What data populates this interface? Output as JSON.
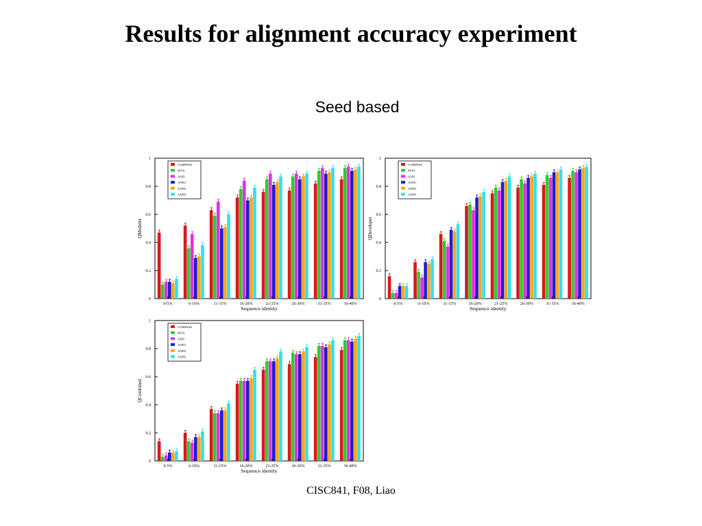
{
  "slide": {
    "title": "Results for alignment accuracy experiment",
    "subtitle": "Seed based",
    "footer": "CISC841, F08, Liao"
  },
  "colors": {
    "COMPASS": "#d7191c",
    "MAX": "#2ecc2e",
    "AND": "#e52ee5",
    "AND1": "#1f1fc8",
    "AND2": "#ffa51f",
    "AND3": "#33e0ee"
  },
  "chart_data": [
    {
      "type": "bar",
      "ylabel": "QModeler",
      "xlabel": "Sequence identity",
      "ylim": [
        0,
        1
      ],
      "yticks": [
        "0",
        "0.2",
        "0.4",
        "0.6",
        "0.8",
        "1"
      ],
      "legend_position": "top-left",
      "categories": [
        "0-5%",
        "6-10%",
        "11-15%",
        "16-20%",
        "21-25%",
        "26-30%",
        "31-35%",
        "36-40%"
      ],
      "series": [
        {
          "name": "COMPASS",
          "values": [
            0.47,
            0.52,
            0.63,
            0.72,
            0.76,
            0.77,
            0.82,
            0.85
          ]
        },
        {
          "name": "MAX",
          "values": [
            0.1,
            0.36,
            0.59,
            0.78,
            0.85,
            0.87,
            0.91,
            0.93
          ]
        },
        {
          "name": "AND",
          "values": [
            0.12,
            0.46,
            0.69,
            0.84,
            0.89,
            0.89,
            0.93,
            0.94
          ]
        },
        {
          "name": "AND1",
          "values": [
            0.12,
            0.29,
            0.5,
            0.7,
            0.81,
            0.85,
            0.89,
            0.91
          ]
        },
        {
          "name": "AND2",
          "values": [
            0.11,
            0.3,
            0.51,
            0.72,
            0.83,
            0.87,
            0.9,
            0.92
          ]
        },
        {
          "name": "AND3",
          "values": [
            0.14,
            0.38,
            0.6,
            0.79,
            0.87,
            0.89,
            0.93,
            0.94
          ]
        }
      ]
    },
    {
      "type": "bar",
      "ylabel": "QDeveloper",
      "xlabel": "Sequence identity",
      "ylim": [
        0,
        1
      ],
      "yticks": [
        "0",
        "0.2",
        "0.4",
        "0.6",
        "0.8",
        "1"
      ],
      "legend_position": "top-left",
      "categories": [
        "0-5%",
        "6-10%",
        "11-15%",
        "16-20%",
        "21-25%",
        "26-30%",
        "31-35%",
        "36-40%"
      ],
      "series": [
        {
          "name": "COMPASS",
          "values": [
            0.16,
            0.26,
            0.46,
            0.66,
            0.75,
            0.79,
            0.81,
            0.86
          ]
        },
        {
          "name": "MAX",
          "values": [
            0.04,
            0.19,
            0.41,
            0.67,
            0.79,
            0.85,
            0.88,
            0.91
          ]
        },
        {
          "name": "AND",
          "values": [
            0.04,
            0.15,
            0.37,
            0.63,
            0.77,
            0.82,
            0.86,
            0.9
          ]
        },
        {
          "name": "AND1",
          "values": [
            0.09,
            0.26,
            0.49,
            0.72,
            0.83,
            0.86,
            0.9,
            0.92
          ]
        },
        {
          "name": "AND2",
          "values": [
            0.09,
            0.25,
            0.48,
            0.73,
            0.84,
            0.87,
            0.9,
            0.93
          ]
        },
        {
          "name": "AND3",
          "values": [
            0.09,
            0.28,
            0.53,
            0.76,
            0.87,
            0.89,
            0.92,
            0.94
          ]
        }
      ]
    },
    {
      "type": "bar",
      "ylabel": "QCombined",
      "xlabel": "Sequence identity",
      "ylim": [
        0,
        1
      ],
      "yticks": [
        "0",
        "0.2",
        "0.4",
        "0.6",
        "0.8",
        "1"
      ],
      "legend_position": "top-left",
      "categories": [
        "0-5%",
        "6-10%",
        "11-15%",
        "16-20%",
        "21-25%",
        "26-30%",
        "31-35%",
        "36-40%"
      ],
      "series": [
        {
          "name": "COMPASS",
          "values": [
            0.14,
            0.2,
            0.37,
            0.55,
            0.65,
            0.69,
            0.74,
            0.79
          ]
        },
        {
          "name": "MAX",
          "values": [
            0.03,
            0.14,
            0.34,
            0.57,
            0.71,
            0.77,
            0.82,
            0.86
          ]
        },
        {
          "name": "AND",
          "values": [
            0.04,
            0.13,
            0.34,
            0.57,
            0.71,
            0.76,
            0.82,
            0.86
          ]
        },
        {
          "name": "AND1",
          "values": [
            0.06,
            0.17,
            0.36,
            0.57,
            0.71,
            0.76,
            0.81,
            0.85
          ]
        },
        {
          "name": "AND2",
          "values": [
            0.06,
            0.17,
            0.36,
            0.59,
            0.73,
            0.78,
            0.83,
            0.87
          ]
        },
        {
          "name": "AND3",
          "values": [
            0.07,
            0.21,
            0.41,
            0.65,
            0.78,
            0.81,
            0.86,
            0.89
          ]
        }
      ]
    }
  ]
}
